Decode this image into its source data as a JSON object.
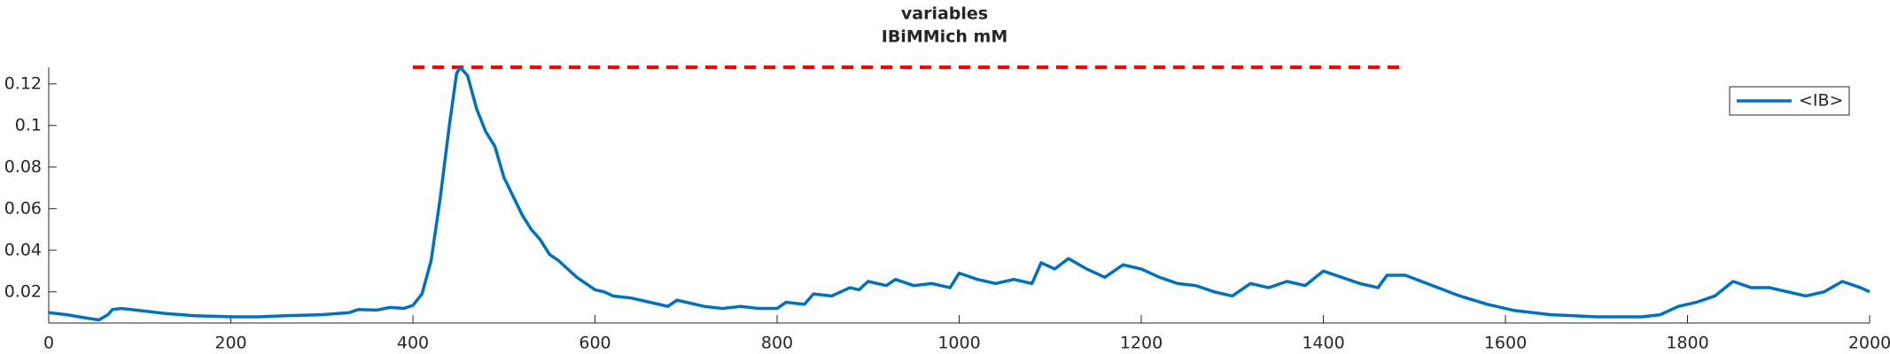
{
  "chart_data": {
    "type": "line",
    "title": "variables",
    "subtitle": "IBiMMich mM",
    "x": [
      0,
      20,
      40,
      55,
      65,
      70,
      80,
      100,
      130,
      160,
      200,
      230,
      260,
      300,
      330,
      340,
      360,
      375,
      390,
      400,
      410,
      420,
      430,
      440,
      448,
      452,
      460,
      470,
      480,
      490,
      500,
      510,
      520,
      530,
      540,
      550,
      560,
      570,
      580,
      590,
      600,
      610,
      620,
      640,
      660,
      680,
      690,
      700,
      720,
      740,
      760,
      780,
      800,
      810,
      830,
      840,
      860,
      880,
      890,
      900,
      920,
      930,
      950,
      970,
      990,
      1000,
      1020,
      1040,
      1060,
      1080,
      1090,
      1105,
      1120,
      1140,
      1160,
      1180,
      1200,
      1220,
      1240,
      1260,
      1280,
      1300,
      1320,
      1340,
      1360,
      1380,
      1400,
      1420,
      1440,
      1460,
      1470,
      1490,
      1520,
      1550,
      1580,
      1610,
      1650,
      1700,
      1750,
      1770,
      1790,
      1810,
      1830,
      1850,
      1870,
      1890,
      1910,
      1930,
      1950,
      1970,
      1990,
      2000
    ],
    "series": [
      {
        "name": "<IB>",
        "color": "#0072bd",
        "values": [
          0.01,
          0.009,
          0.0075,
          0.0065,
          0.009,
          0.0115,
          0.012,
          0.011,
          0.0095,
          0.0085,
          0.008,
          0.008,
          0.0085,
          0.009,
          0.01,
          0.0115,
          0.0112,
          0.0125,
          0.012,
          0.0135,
          0.019,
          0.035,
          0.065,
          0.1,
          0.125,
          0.128,
          0.124,
          0.108,
          0.097,
          0.09,
          0.075,
          0.066,
          0.057,
          0.05,
          0.045,
          0.038,
          0.035,
          0.031,
          0.027,
          0.024,
          0.021,
          0.02,
          0.018,
          0.017,
          0.015,
          0.013,
          0.016,
          0.015,
          0.013,
          0.012,
          0.013,
          0.012,
          0.012,
          0.015,
          0.014,
          0.019,
          0.018,
          0.022,
          0.021,
          0.025,
          0.023,
          0.026,
          0.023,
          0.024,
          0.022,
          0.029,
          0.026,
          0.024,
          0.026,
          0.024,
          0.034,
          0.031,
          0.036,
          0.031,
          0.027,
          0.033,
          0.031,
          0.027,
          0.024,
          0.023,
          0.02,
          0.018,
          0.024,
          0.022,
          0.025,
          0.023,
          0.03,
          0.027,
          0.024,
          0.022,
          0.028,
          0.028,
          0.023,
          0.018,
          0.014,
          0.011,
          0.009,
          0.008,
          0.008,
          0.009,
          0.013,
          0.015,
          0.018,
          0.025,
          0.022,
          0.022,
          0.02,
          0.018,
          0.02,
          0.025,
          0.022,
          0.02
        ]
      }
    ],
    "reference_line": {
      "x": [
        400,
        1490
      ],
      "y": 0.128,
      "color": "#ff0000"
    },
    "xlim": [
      0,
      2000
    ],
    "xticks": [
      0,
      200,
      400,
      600,
      800,
      1000,
      1200,
      1400,
      1600,
      1800,
      2000
    ],
    "ylim": [
      0.005,
      0.128
    ],
    "yticks": [
      0.02,
      0.04,
      0.06,
      0.08,
      0.1,
      0.12
    ],
    "legend": "upper right"
  }
}
